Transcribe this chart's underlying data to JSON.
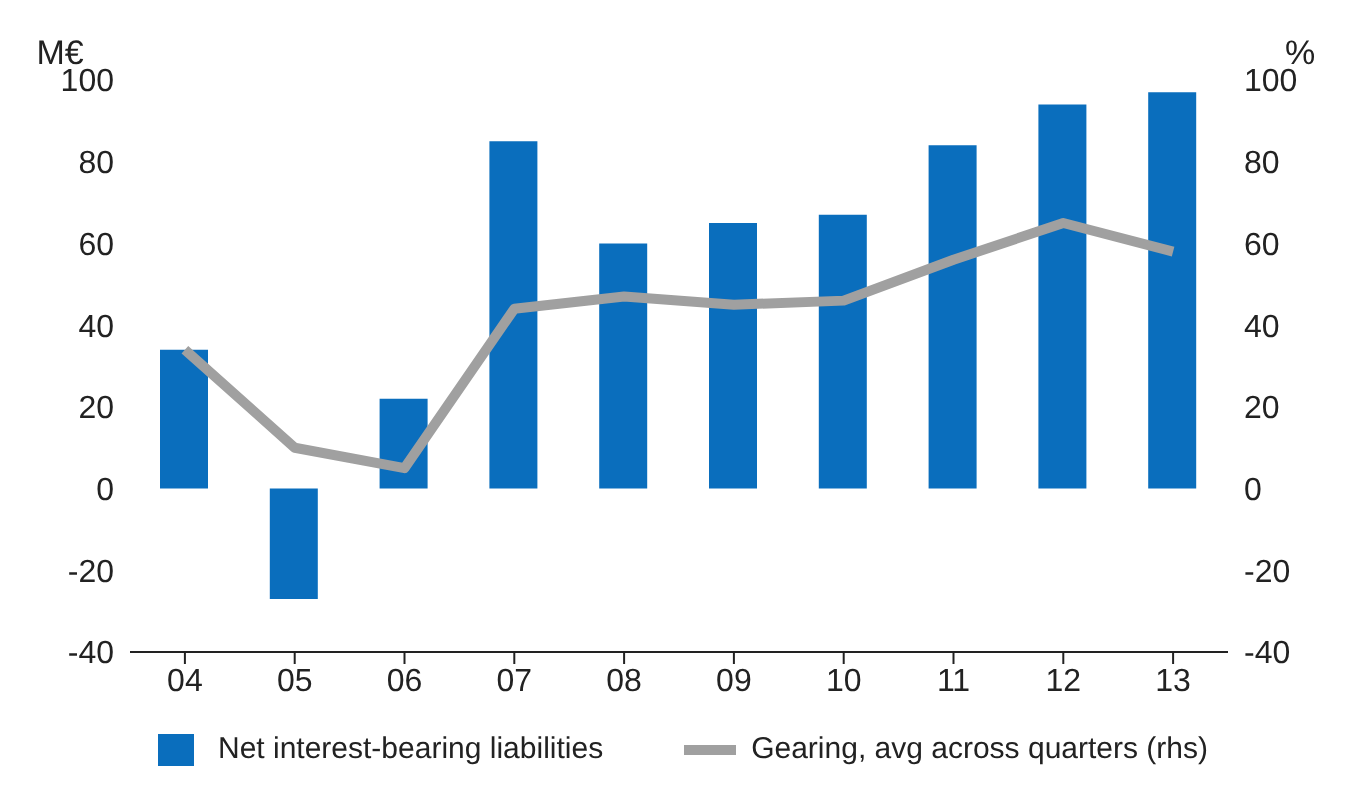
{
  "chart_data": {
    "type": "bar",
    "ylabel": "M€",
    "y2label": "%",
    "categories": [
      "04",
      "05",
      "06",
      "07",
      "08",
      "09",
      "10",
      "11",
      "12",
      "13"
    ],
    "series": [
      {
        "name": "Net interest-bearing liabilities",
        "color": "#0a6ebd",
        "values": [
          34,
          -27,
          22,
          85,
          60,
          65,
          67,
          84,
          94,
          97
        ]
      },
      {
        "name": "Gearing, avg across quarters (rhs)",
        "type": "line",
        "axis": "y2",
        "color": "#a0a0a0",
        "values": [
          34,
          10,
          5,
          44,
          47,
          45,
          46,
          56,
          65,
          58
        ]
      }
    ],
    "ylim": [
      -40,
      100
    ],
    "yticks": [
      -40,
      -20,
      0,
      20,
      40,
      60,
      80,
      100
    ],
    "y2lim": [
      -40,
      100
    ],
    "y2ticks": [
      -40,
      -20,
      0,
      20,
      40,
      60,
      80,
      100
    ],
    "legend": "bottom",
    "marker": "none"
  }
}
